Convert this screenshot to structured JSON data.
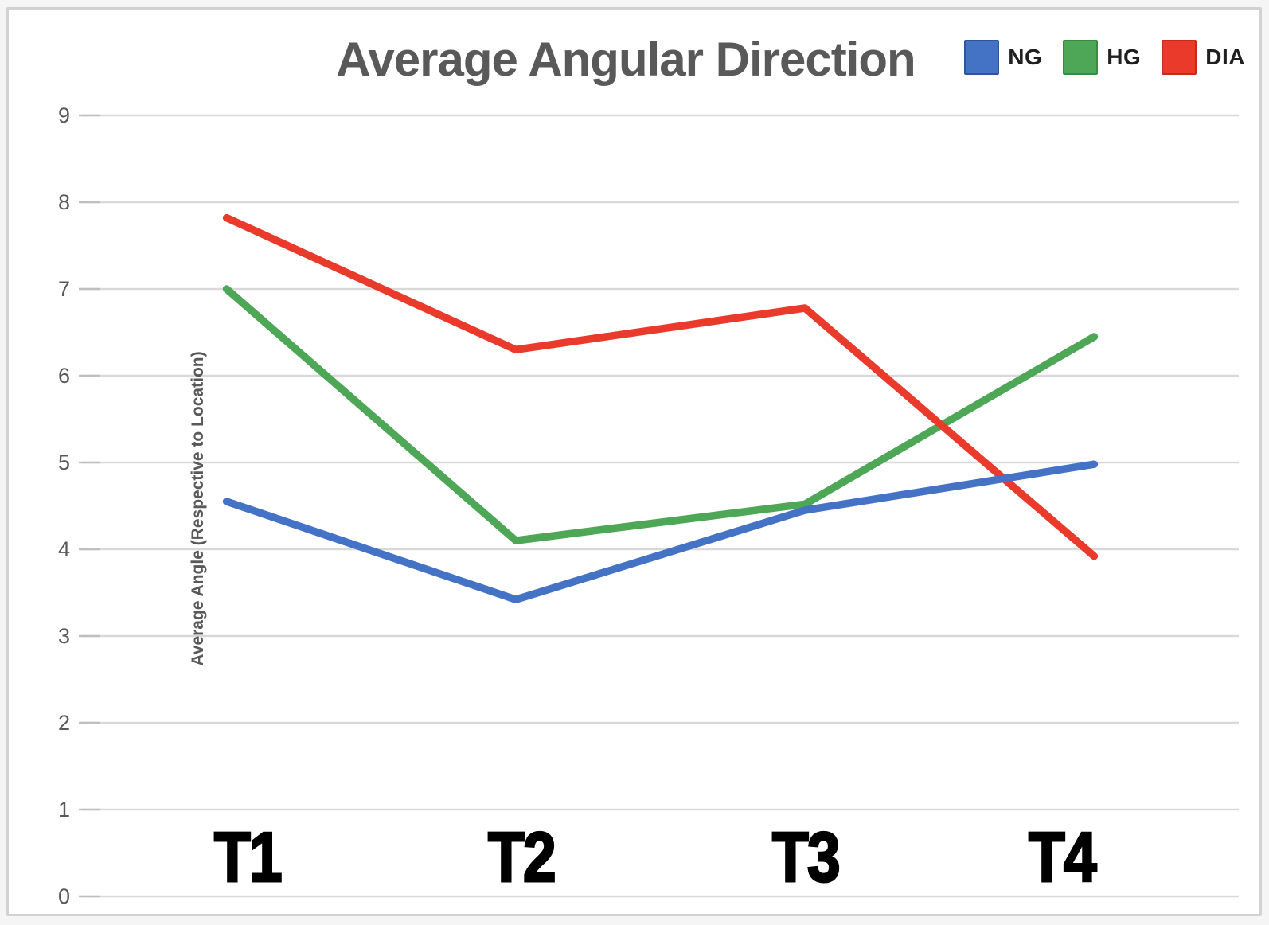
{
  "window": {
    "background": "#ffffff",
    "card_border_color": "#d2d2d2",
    "outer_strip_color": "#f5f5f5"
  },
  "chart_data": {
    "type": "line",
    "title": "Average Angular Direction",
    "xlabel": "",
    "ylabel": "Average Angle (Respective to Location)",
    "categories": [
      "T1",
      "T2",
      "T3",
      "T4"
    ],
    "series": [
      {
        "name": "NG",
        "color": "#4472C4",
        "swatch_border": "#2F5597",
        "values": [
          4.55,
          3.42,
          4.45,
          4.98
        ]
      },
      {
        "name": "HG",
        "color": "#4EA657",
        "swatch_border": "#3B8A44",
        "values": [
          7.0,
          4.1,
          4.52,
          6.45
        ]
      },
      {
        "name": "DIA",
        "color": "#E93A2B",
        "swatch_border": "#C42A1D",
        "values": [
          7.82,
          6.3,
          6.78,
          3.92
        ]
      }
    ],
    "ylim": [
      0,
      9
    ],
    "y_ticks": [
      0,
      1,
      2,
      3,
      4,
      5,
      6,
      7,
      8,
      9
    ],
    "grid": "horizontal gridlines on",
    "legend_position": "top-right",
    "line_width": 9.5
  },
  "colors": {
    "grid": "#d9d9d9",
    "tick": "#bfbfbf",
    "axis_text": "#595959",
    "title_text": "#595959",
    "category_text": "#000000",
    "legend_text": "#1f1f1f"
  }
}
